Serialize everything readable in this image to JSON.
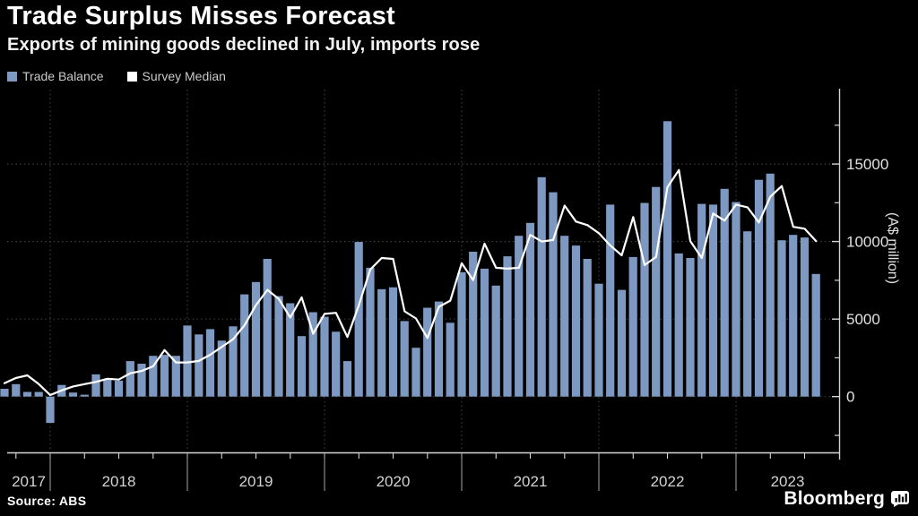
{
  "header": {
    "title": "Trade Surplus Misses Forecast",
    "subtitle": "Exports of mining goods declined in July, imports rose"
  },
  "legend": {
    "items": [
      {
        "label": "Trade Balance",
        "color": "#7e99c1",
        "type": "bar"
      },
      {
        "label": "Survey Median",
        "color": "#ffffff",
        "type": "line"
      }
    ]
  },
  "footer": {
    "source": "Source: ABS",
    "brand": "Bloomberg",
    "brand_icon": "bar-chart-bubble-icon"
  },
  "colors": {
    "background": "#000000",
    "bar": "#7e99c1",
    "line": "#ffffff",
    "grid": "#3e3e3e",
    "axis": "#d5d5d5",
    "tick_label": "#e2e2e2",
    "year_label": "#d2d2d2",
    "below_axis_separator": "#9a9a9a"
  },
  "chart_data": {
    "type": "bar",
    "title": "Trade Surplus Misses Forecast",
    "xlabel": "",
    "ylabel": "(A$ million)",
    "grid": "horizontal-dotted",
    "legend_position": "top-left",
    "ylim": [
      -3600,
      19800
    ],
    "y_ticks": [
      {
        "v": 0,
        "label": "0"
      },
      {
        "v": 5000,
        "label": "5000"
      },
      {
        "v": 10000,
        "label": "10000"
      },
      {
        "v": 15000,
        "label": "15000"
      }
    ],
    "y_minor_ticks": [
      -2500,
      2500,
      7500,
      12500,
      17500
    ],
    "year_labels": [
      "2017",
      "2018",
      "2019",
      "2020",
      "2021",
      "2022",
      "2023"
    ],
    "year_boundaries": [
      4,
      16,
      28,
      40,
      52,
      64
    ],
    "x": [
      "2017-08",
      "2017-09",
      "2017-10",
      "2017-11",
      "2017-12",
      "2018-01",
      "2018-02",
      "2018-03",
      "2018-04",
      "2018-05",
      "2018-06",
      "2018-07",
      "2018-08",
      "2018-09",
      "2018-10",
      "2018-11",
      "2018-12",
      "2019-01",
      "2019-02",
      "2019-03",
      "2019-04",
      "2019-05",
      "2019-06",
      "2019-07",
      "2019-08",
      "2019-09",
      "2019-10",
      "2019-11",
      "2019-12",
      "2020-01",
      "2020-02",
      "2020-03",
      "2020-04",
      "2020-05",
      "2020-06",
      "2020-07",
      "2020-08",
      "2020-09",
      "2020-10",
      "2020-11",
      "2020-12",
      "2021-01",
      "2021-02",
      "2021-03",
      "2021-04",
      "2021-05",
      "2021-06",
      "2021-07",
      "2021-08",
      "2021-09",
      "2021-10",
      "2021-11",
      "2021-12",
      "2022-01",
      "2022-02",
      "2022-03",
      "2022-04",
      "2022-05",
      "2022-06",
      "2022-07",
      "2022-08",
      "2022-09",
      "2022-10",
      "2022-11",
      "2022-12",
      "2023-01",
      "2023-02",
      "2023-03",
      "2023-04",
      "2023-05",
      "2023-06",
      "2023-07"
    ],
    "series": [
      {
        "name": "Trade Balance",
        "type": "bar",
        "values": [
          500,
          800,
          300,
          300,
          -1700,
          750,
          260,
          120,
          1430,
          1150,
          1030,
          2290,
          2120,
          2630,
          2690,
          2630,
          4580,
          4010,
          4350,
          3610,
          4530,
          6590,
          7390,
          8880,
          6480,
          6020,
          3900,
          5440,
          5150,
          4180,
          2290,
          9970,
          8310,
          6930,
          7050,
          4870,
          3150,
          5730,
          6130,
          4760,
          8020,
          9340,
          8250,
          7160,
          9050,
          10370,
          11200,
          14150,
          13180,
          10370,
          9740,
          8880,
          7280,
          12380,
          6880,
          9000,
          12490,
          13520,
          17760,
          9230,
          8940,
          12430,
          12380,
          13400,
          12550,
          10660,
          13980,
          14380,
          10080,
          10430,
          10260,
          7910
        ]
      },
      {
        "name": "Survey Median",
        "type": "line",
        "values": [
          860,
          1200,
          1370,
          800,
          100,
          400,
          650,
          800,
          950,
          1150,
          1100,
          1500,
          1650,
          1950,
          3000,
          2200,
          2200,
          2300,
          2700,
          3200,
          3700,
          4600,
          5900,
          6880,
          6300,
          5100,
          6400,
          4050,
          5330,
          5400,
          3840,
          5900,
          8190,
          8940,
          8880,
          5500,
          5040,
          3780,
          5790,
          6190,
          8600,
          7510,
          9860,
          8310,
          8250,
          8310,
          10430,
          10000,
          10100,
          12320,
          11290,
          11060,
          10540,
          9740,
          9110,
          11580,
          8480,
          9000,
          13500,
          14610,
          10030,
          8940,
          11810,
          11350,
          12380,
          12210,
          11230,
          12890,
          13580,
          10950,
          10830,
          10030
        ]
      }
    ]
  }
}
